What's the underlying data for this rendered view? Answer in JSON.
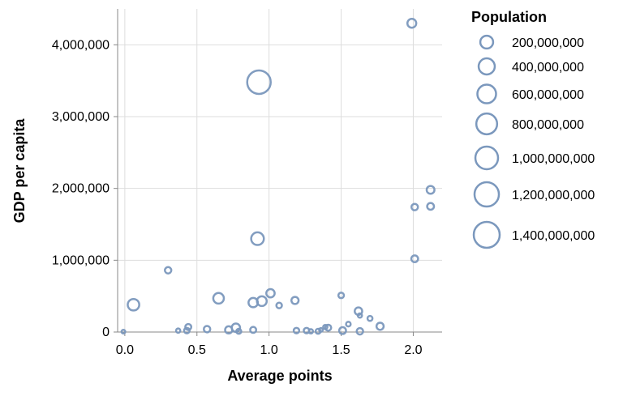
{
  "chart_data": {
    "type": "scatter",
    "title": "",
    "xlabel": "Average points",
    "ylabel": "GDP per capita",
    "xlim": [
      -0.05,
      2.2
    ],
    "ylim": [
      0,
      4500000
    ],
    "x_ticks": [
      0.0,
      0.5,
      1.0,
      1.5,
      2.0
    ],
    "x_tick_labels": [
      "0.0",
      "0.5",
      "1.0",
      "1.5",
      "2.0"
    ],
    "y_ticks": [
      0,
      1000000,
      2000000,
      3000000,
      4000000
    ],
    "y_tick_labels": [
      "0",
      "1,000,000",
      "2,000,000",
      "3,000,000",
      "4,000,000"
    ],
    "grid": true,
    "size_legend": {
      "title": "Population",
      "position": "right",
      "entries": [
        {
          "label": "200,000,000",
          "value": 200000000
        },
        {
          "label": "400,000,000",
          "value": 400000000
        },
        {
          "label": "600,000,000",
          "value": 600000000
        },
        {
          "label": "800,000,000",
          "value": 800000000
        },
        {
          "label": "1,000,000,000",
          "value": 1000000000
        },
        {
          "label": "1,200,000,000",
          "value": 1200000000
        },
        {
          "label": "1,400,000,000",
          "value": 1400000000
        }
      ]
    },
    "marker": {
      "shape": "circle",
      "filled": false,
      "color": "#7b98bd"
    },
    "points": [
      {
        "x": 1.99,
        "y": 4300000,
        "size": 130000000
      },
      {
        "x": 0.93,
        "y": 3480000,
        "size": 1400000000
      },
      {
        "x": 2.12,
        "y": 1980000,
        "size": 90000000
      },
      {
        "x": 2.01,
        "y": 1740000,
        "size": 50000000
      },
      {
        "x": 2.12,
        "y": 1750000,
        "size": 60000000
      },
      {
        "x": 0.92,
        "y": 1300000,
        "size": 330000000
      },
      {
        "x": 2.01,
        "y": 1020000,
        "size": 60000000
      },
      {
        "x": 0.3,
        "y": 860000,
        "size": 50000000
      },
      {
        "x": 1.01,
        "y": 540000,
        "size": 110000000
      },
      {
        "x": 1.5,
        "y": 510000,
        "size": 30000000
      },
      {
        "x": 0.65,
        "y": 470000,
        "size": 210000000
      },
      {
        "x": 1.18,
        "y": 440000,
        "size": 70000000
      },
      {
        "x": 0.95,
        "y": 430000,
        "size": 170000000
      },
      {
        "x": 0.89,
        "y": 410000,
        "size": 150000000
      },
      {
        "x": 0.06,
        "y": 380000,
        "size": 260000000
      },
      {
        "x": 1.07,
        "y": 370000,
        "size": 30000000
      },
      {
        "x": 1.62,
        "y": 290000,
        "size": 80000000
      },
      {
        "x": 1.7,
        "y": 190000,
        "size": 20000000
      },
      {
        "x": 1.63,
        "y": 230000,
        "size": 10000000
      },
      {
        "x": 1.55,
        "y": 110000,
        "size": 15000000
      },
      {
        "x": 1.77,
        "y": 80000,
        "size": 70000000
      },
      {
        "x": 0.44,
        "y": 70000,
        "size": 40000000
      },
      {
        "x": 0.77,
        "y": 60000,
        "size": 110000000
      },
      {
        "x": 1.41,
        "y": 60000,
        "size": 40000000
      },
      {
        "x": 1.39,
        "y": 70000,
        "size": 10000000
      },
      {
        "x": 0.57,
        "y": 40000,
        "size": 50000000
      },
      {
        "x": 0.89,
        "y": 30000,
        "size": 40000000
      },
      {
        "x": 0.72,
        "y": 30000,
        "size": 70000000
      },
      {
        "x": 1.51,
        "y": 20000,
        "size": 60000000
      },
      {
        "x": 1.19,
        "y": 20000,
        "size": 30000000
      },
      {
        "x": 1.26,
        "y": 20000,
        "size": 30000000
      },
      {
        "x": 1.34,
        "y": 10000,
        "size": 20000000
      },
      {
        "x": 1.36,
        "y": 30000,
        "size": 5000000
      },
      {
        "x": 1.63,
        "y": 10000,
        "size": 50000000
      },
      {
        "x": 0.43,
        "y": 20000,
        "size": 30000000
      },
      {
        "x": 0.37,
        "y": 20000,
        "size": 10000000
      },
      {
        "x": 0.79,
        "y": 10000,
        "size": 20000000
      },
      {
        "x": 1.29,
        "y": 10000,
        "size": 10000000
      },
      {
        "x": -0.01,
        "y": 5000,
        "size": 5000000
      }
    ]
  }
}
